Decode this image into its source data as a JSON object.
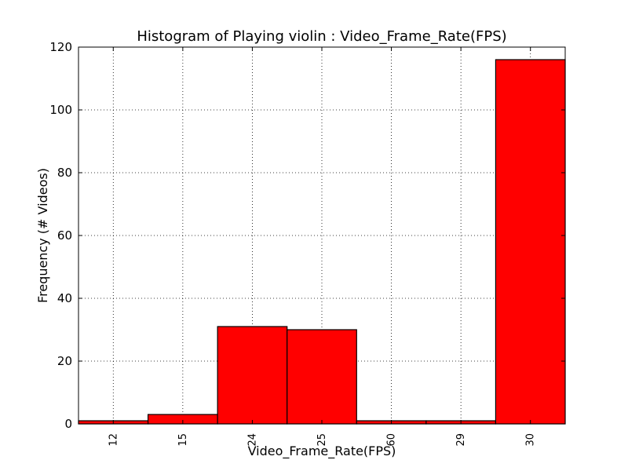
{
  "chart_data": {
    "type": "bar",
    "title": "Histogram of Playing violin : Video_Frame_Rate(FPS)",
    "xlabel": "Video_Frame_Rate(FPS)",
    "ylabel": "Frequency (# Videos)",
    "categories": [
      "12",
      "15",
      "24",
      "25",
      "60",
      "29",
      "30"
    ],
    "values": [
      1,
      3,
      31,
      30,
      1,
      1,
      116
    ],
    "ylim": [
      0,
      120
    ],
    "yticks": [
      "0",
      "20",
      "40",
      "60",
      "80",
      "100",
      "120"
    ],
    "grid": true,
    "bar_color": "#ff0000"
  }
}
